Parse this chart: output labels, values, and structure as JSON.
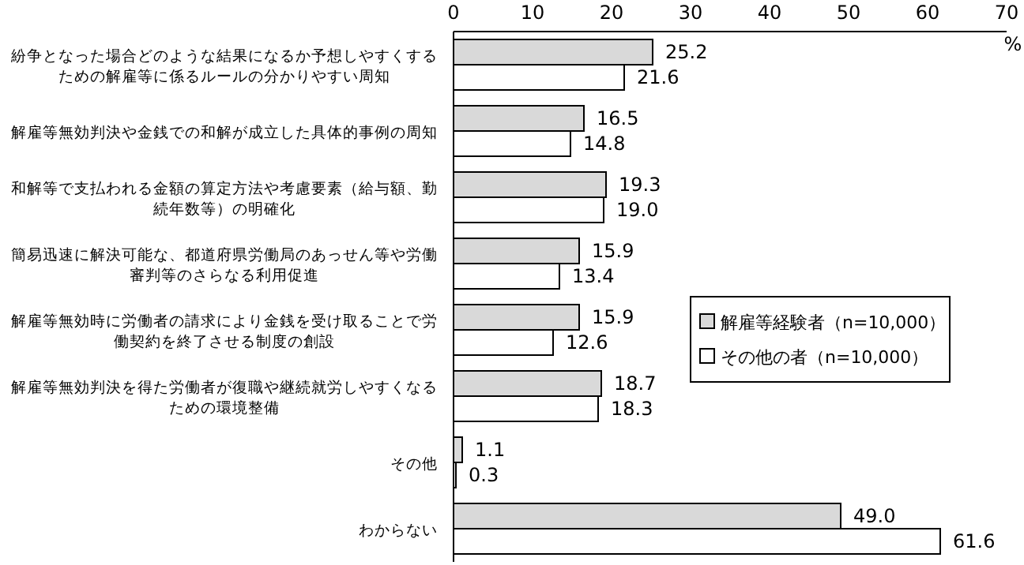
{
  "chart_data": {
    "type": "bar",
    "orientation": "horizontal",
    "xlabel": "%",
    "categories": [
      "紛争となった場合どのような結果になるか予想しやすくするための解雇等に係るルールの分かりやすい周知",
      "解雇等無効判決や金銭での和解が成立した具体的事例の周知",
      "和解等で支払われる金額の算定方法や考慮要素（給与額、勤続年数等）の明確化",
      "簡易迅速に解決可能な、都道府県労働局のあっせん等や労働審判等のさらなる利用促進",
      "解雇等無効時に労働者の請求により金銭を受け取ることで労働契約を終了させる制度の創設",
      "解雇等無効判決を得た労働者が復職や継続就労しやすくなるための環境整備",
      "その他",
      "わからない"
    ],
    "series": [
      {
        "name": "解雇等経験者（n=10,000）",
        "color": "#d9d9d9",
        "values": [
          25.2,
          16.5,
          19.3,
          15.9,
          15.9,
          18.7,
          1.1,
          49.0
        ],
        "value_labels": [
          "25.2",
          "16.5",
          "19.3",
          "15.9",
          "15.9",
          "18.7",
          "1.1",
          "49.0"
        ]
      },
      {
        "name": "その他の者（n=10,000）",
        "color": "#ffffff",
        "values": [
          21.6,
          14.8,
          19.0,
          13.4,
          12.6,
          18.3,
          0.3,
          61.6
        ],
        "value_labels": [
          "21.6",
          "14.8",
          "19.0",
          "13.4",
          "12.6",
          "18.3",
          "0.3",
          "61.6"
        ]
      }
    ],
    "xlim": [
      0,
      70
    ],
    "xticks": [
      0,
      10,
      20,
      30,
      40,
      50,
      60,
      70
    ],
    "legend": "right",
    "grid": false
  }
}
